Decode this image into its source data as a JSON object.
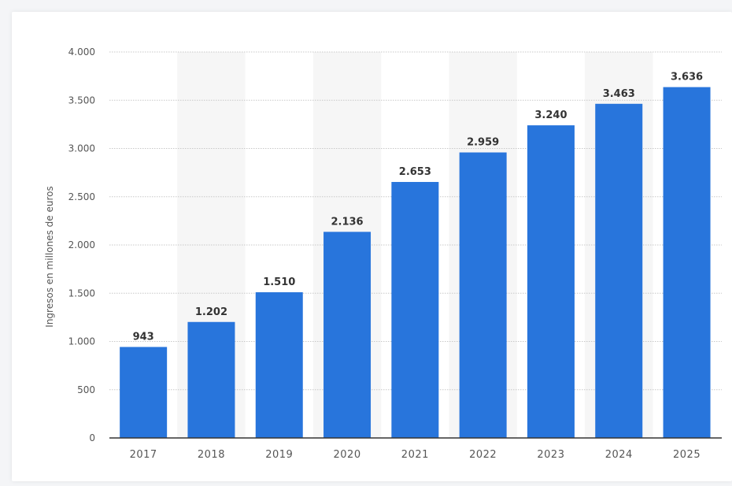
{
  "chart_data": {
    "type": "bar",
    "categories": [
      "2017",
      "2018",
      "2019",
      "2020",
      "2021",
      "2022",
      "2023",
      "2024",
      "2025"
    ],
    "values": [
      943,
      1202,
      1510,
      2136,
      2653,
      2959,
      3240,
      3463,
      3636
    ],
    "value_labels": [
      "943",
      "1.202",
      "1.510",
      "2.136",
      "2.653",
      "2.959",
      "3.240",
      "3.463",
      "3.636"
    ],
    "ylabel": "Ingresos en millones de euros",
    "xlabel": "",
    "ylim": [
      0,
      4000
    ],
    "yticks": [
      0,
      500,
      1000,
      1500,
      2000,
      2500,
      3000,
      3500,
      4000
    ],
    "ytick_labels": [
      "0",
      "500",
      "1.000",
      "1.500",
      "2.000",
      "2.500",
      "3.000",
      "3.500",
      "4.000"
    ],
    "grid": true,
    "legend": false,
    "colors": {
      "bar": "#2875dc",
      "stripe": "#f6f6f6",
      "grid": "#c8c8c8",
      "axis": "#333333"
    }
  }
}
